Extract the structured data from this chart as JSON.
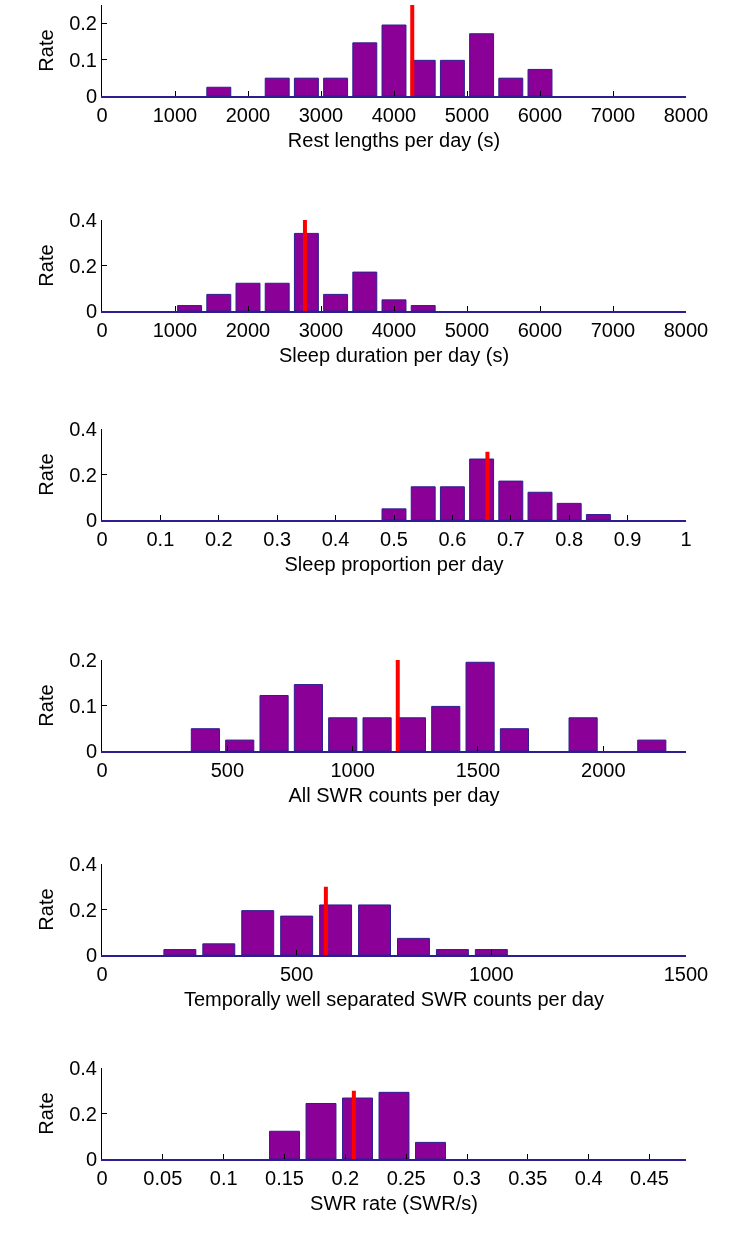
{
  "chart_data": [
    {
      "type": "histogram",
      "xlabel": "Rest lengths per day (s)",
      "ylabel": "Rate",
      "color": "#8b0096",
      "bins": [
        1400,
        1800,
        2200,
        2600,
        3000,
        3400,
        3800,
        4200,
        4600,
        5000,
        5400,
        5800,
        6200
      ],
      "values": [
        0.024,
        0,
        0.049,
        0.049,
        0.049,
        0.146,
        0.195,
        0.098,
        0.098,
        0.171,
        0.049,
        0.073
      ],
      "series": [
        {
          "type": "line",
          "color": "#ff0000",
          "x": [
            4250,
            4250
          ],
          "values": [
            0,
            0.25
          ]
        }
      ],
      "xlim": [
        0,
        8000
      ],
      "xticks": [
        0,
        1000,
        2000,
        3000,
        4000,
        5000,
        6000,
        7000,
        8000
      ],
      "ylim": [
        0,
        0.25
      ],
      "yticks": [
        0,
        0.1,
        0.2
      ],
      "grid": false
    },
    {
      "type": "histogram",
      "xlabel": "Sleep duration per day (s)",
      "ylabel": "Rate",
      "color": "#8b0096",
      "bins": [
        1000,
        1400,
        1800,
        2200,
        2600,
        3000,
        3400,
        3800,
        4200,
        4600
      ],
      "values": [
        0.024,
        0.073,
        0.122,
        0.122,
        0.341,
        0.073,
        0.171,
        0.049,
        0.024
      ],
      "series": [
        {
          "type": "line",
          "color": "#ff0000",
          "x": [
            2780,
            2780
          ],
          "values": [
            0,
            0.4
          ]
        }
      ],
      "xlim": [
        0,
        8000
      ],
      "xticks": [
        0,
        1000,
        2000,
        3000,
        4000,
        5000,
        6000,
        7000,
        8000
      ],
      "ylim": [
        0,
        0.4
      ],
      "yticks": [
        0,
        0.2,
        0.4
      ],
      "grid": false
    },
    {
      "type": "histogram",
      "xlabel": "Sleep proportion per day",
      "ylabel": "Rate",
      "color": "#8b0096",
      "bins": [
        0.475,
        0.525,
        0.575,
        0.625,
        0.675,
        0.725,
        0.775,
        0.825,
        0.875
      ],
      "values": [
        0.049,
        0.146,
        0.146,
        0.268,
        0.171,
        0.122,
        0.073,
        0.024
      ],
      "series": [
        {
          "type": "line",
          "color": "#ff0000",
          "x": [
            0.66,
            0.66
          ],
          "values": [
            0,
            0.3
          ]
        }
      ],
      "xlim": [
        0,
        1
      ],
      "xticks": [
        0,
        0.1,
        0.2,
        0.3,
        0.4,
        0.5,
        0.6,
        0.7,
        0.8,
        0.9,
        1
      ],
      "ylim": [
        0,
        0.4
      ],
      "yticks": [
        0,
        0.2,
        0.4
      ],
      "grid": false
    },
    {
      "type": "histogram",
      "xlabel": "All SWR counts per day",
      "ylabel": "Rate",
      "color": "#8b0096",
      "bins": [
        344,
        481,
        618,
        755,
        892,
        1029,
        1166,
        1303,
        1440,
        1577,
        1714,
        1851,
        1988,
        2125,
        2262
      ],
      "values": [
        0.049,
        0.024,
        0.122,
        0.146,
        0.073,
        0.073,
        0.073,
        0.098,
        0.195,
        0.049,
        0,
        0.073,
        0,
        0.024
      ],
      "series": [
        {
          "type": "line",
          "color": "#ff0000",
          "x": [
            1180,
            1180
          ],
          "values": [
            0,
            0.2
          ]
        }
      ],
      "xlim": [
        0,
        2330
      ],
      "xticks": [
        0,
        500,
        1000,
        1500,
        2000
      ],
      "ylim": [
        0,
        0.2
      ],
      "yticks": [
        0,
        0.1,
        0.2
      ],
      "grid": false
    },
    {
      "type": "histogram",
      "xlabel": "Temporally well separated SWR counts per day",
      "ylabel": "Rate",
      "color": "#8b0096",
      "bins": [
        150,
        250,
        350,
        450,
        550,
        650,
        750,
        850,
        950,
        1050
      ],
      "values": [
        0.024,
        0.049,
        0.195,
        0.171,
        0.22,
        0.22,
        0.073,
        0.024,
        0.024
      ],
      "series": [
        {
          "type": "line",
          "color": "#ff0000",
          "x": [
            575,
            575
          ],
          "values": [
            0,
            0.3
          ]
        }
      ],
      "xlim": [
        0,
        1500
      ],
      "xticks": [
        0,
        500,
        1000,
        1500
      ],
      "ylim": [
        0,
        0.4
      ],
      "yticks": [
        0,
        0.2,
        0.4
      ],
      "grid": false
    },
    {
      "type": "histogram",
      "xlabel": "SWR rate (SWR/s)",
      "ylabel": "Rate",
      "color": "#8b0096",
      "bins": [
        0.135,
        0.165,
        0.195,
        0.225,
        0.255,
        0.285
      ],
      "values": [
        0.122,
        0.244,
        0.268,
        0.293,
        0.073
      ],
      "series": [
        {
          "type": "line",
          "color": "#ff0000",
          "x": [
            0.207,
            0.207
          ],
          "values": [
            0,
            0.3
          ]
        }
      ],
      "xlim": [
        0,
        0.48
      ],
      "xticks": [
        0,
        0.05,
        0.1,
        0.15,
        0.2,
        0.25,
        0.3,
        0.35,
        0.4,
        0.45
      ],
      "ylim": [
        0,
        0.4
      ],
      "yticks": [
        0,
        0.2,
        0.4
      ],
      "grid": false
    }
  ]
}
